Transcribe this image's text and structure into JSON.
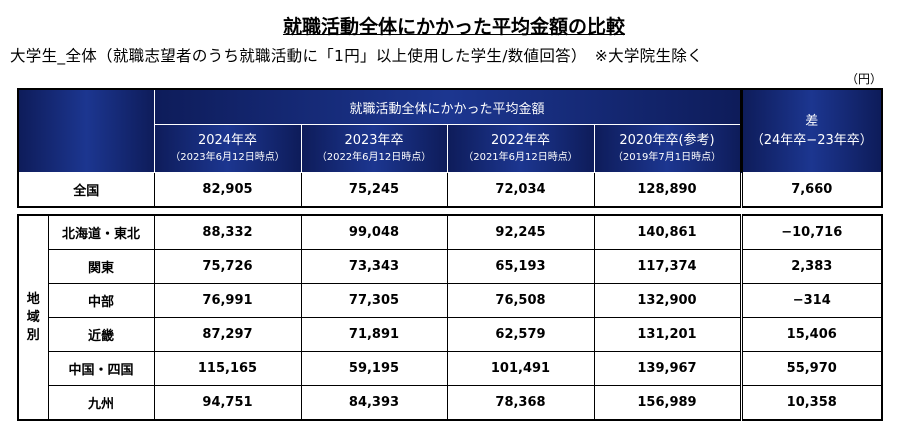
{
  "title": "就職活動全体にかかった平均金額の比較",
  "subtitle": "大学生_全体（就職志望者のうち就職活動に「1円」以上使用した学生/数値回答）　※大学院生除く",
  "unit": "（円）",
  "header": {
    "group": "就職活動全体にかかった平均金額",
    "cols": [
      {
        "label": "2024年卒",
        "sub": "（2023年6月12日時点）"
      },
      {
        "label": "2023年卒",
        "sub": "（2022年6月12日時点）"
      },
      {
        "label": "2022年卒",
        "sub": "（2021年6月12日時点）"
      },
      {
        "label": "2020年卒(参考)",
        "sub": "（2019年7月1日時点）"
      }
    ],
    "diff": "差",
    "diff_sub": "（24年卒−23年卒）"
  },
  "national": {
    "label": "全国",
    "values": [
      "82,905",
      "75,245",
      "72,034",
      "128,890",
      "7,660"
    ]
  },
  "region_label": "地\n域\n別",
  "regions": [
    {
      "label": "北海道・東北",
      "values": [
        "88,332",
        "99,048",
        "92,245",
        "140,861",
        "−10,716"
      ]
    },
    {
      "label": "関東",
      "values": [
        "75,726",
        "73,343",
        "65,193",
        "117,374",
        "2,383"
      ]
    },
    {
      "label": "中部",
      "values": [
        "76,991",
        "77,305",
        "76,508",
        "132,900",
        "−314"
      ]
    },
    {
      "label": "近畿",
      "values": [
        "87,297",
        "71,891",
        "62,579",
        "131,201",
        "15,406"
      ]
    },
    {
      "label": "中国・四国",
      "values": [
        "115,165",
        "59,195",
        "101,491",
        "139,967",
        "55,970"
      ]
    },
    {
      "label": "九州",
      "values": [
        "94,751",
        "84,393",
        "78,368",
        "156,989",
        "10,358"
      ]
    }
  ]
}
